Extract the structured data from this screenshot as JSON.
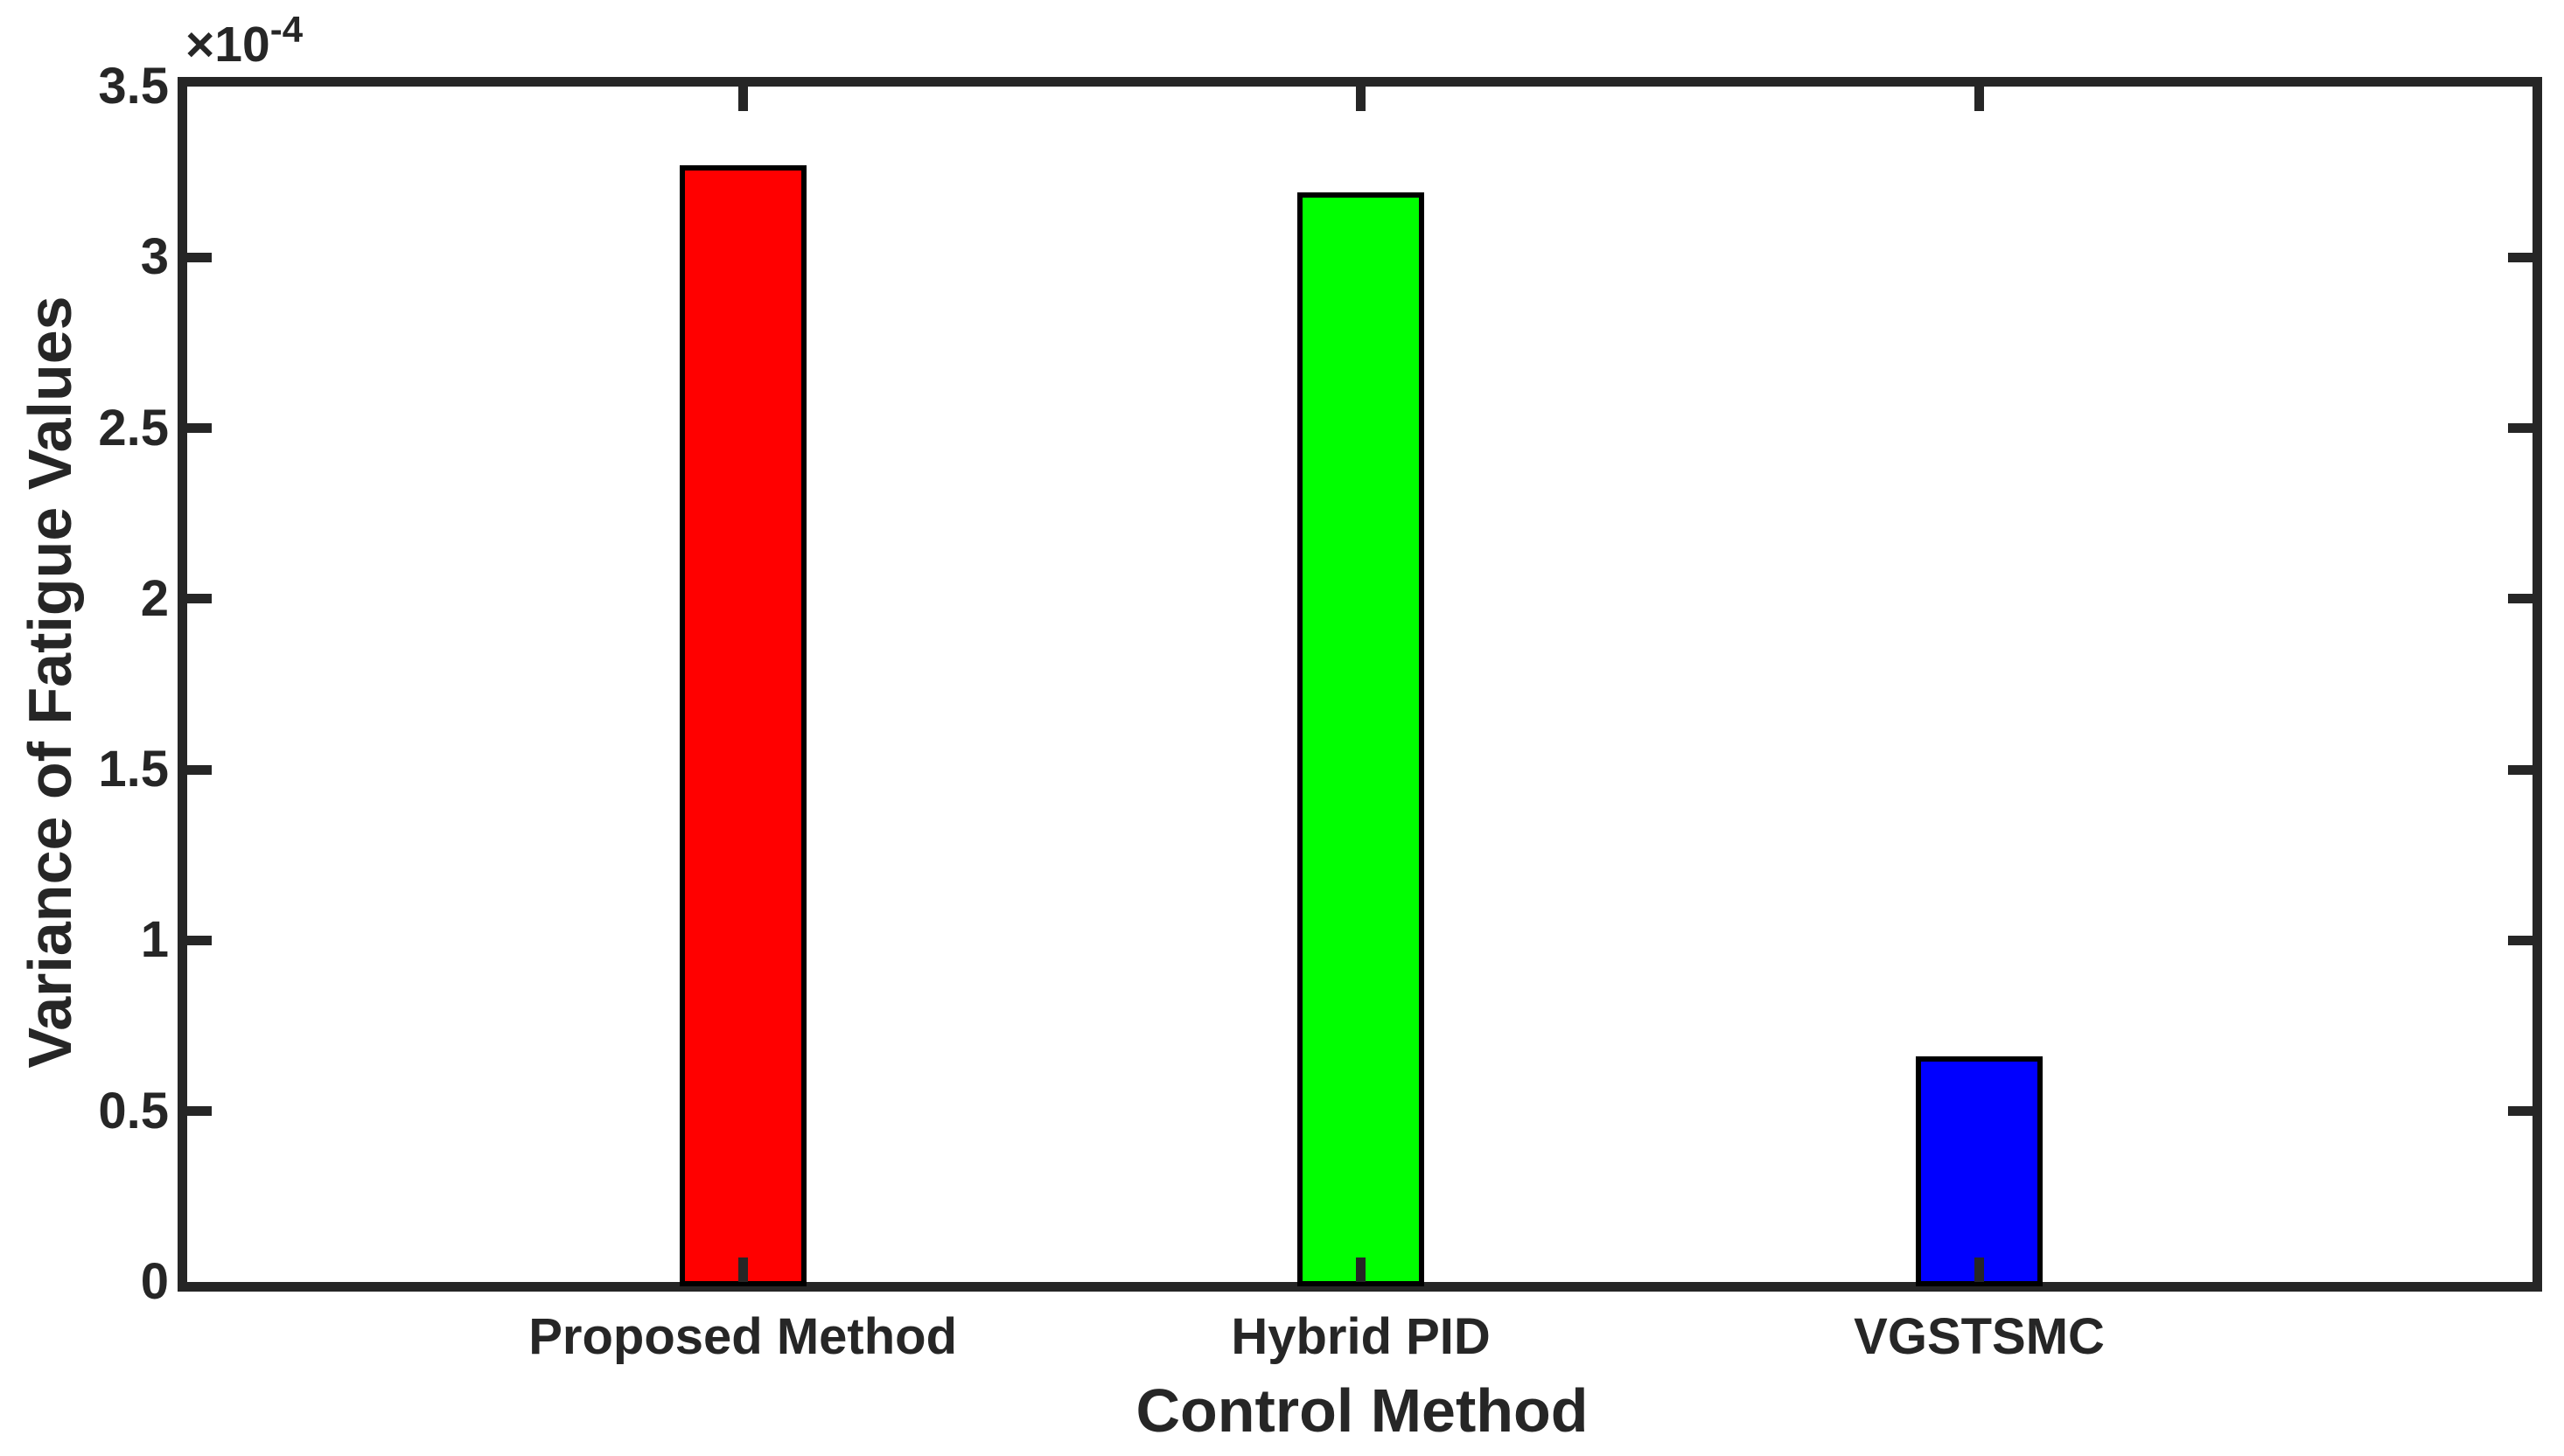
{
  "figure": {
    "background": "#ffffff",
    "axis_color": "#262626"
  },
  "chart_data": {
    "type": "bar",
    "title": "",
    "xlabel": "Control Method",
    "ylabel": "Variance of Fatigue Values",
    "categories": [
      "Proposed Method",
      "Hybrid PID",
      "VGSTSMC"
    ],
    "values": [
      0.000327,
      0.000319,
      6.6e-05
    ],
    "values_in_1e4_units": [
      3.27,
      3.19,
      0.66
    ],
    "bar_colors": [
      "#ff0000",
      "#00ff00",
      "#0000ff"
    ],
    "bar_edge_color": "#000000",
    "ylim": [
      0,
      3.5
    ],
    "yticks": [
      0,
      0.5,
      1,
      1.5,
      2,
      2.5,
      3,
      3.5
    ],
    "ytick_labels": [
      "0",
      "0.5",
      "1",
      "1.5",
      "2",
      "2.5",
      "3",
      "3.5"
    ],
    "y_unit_exponent": {
      "base": "×10",
      "power": "-4"
    },
    "grid": false,
    "legend_position": "none",
    "tick_direction": "in",
    "box": true
  }
}
